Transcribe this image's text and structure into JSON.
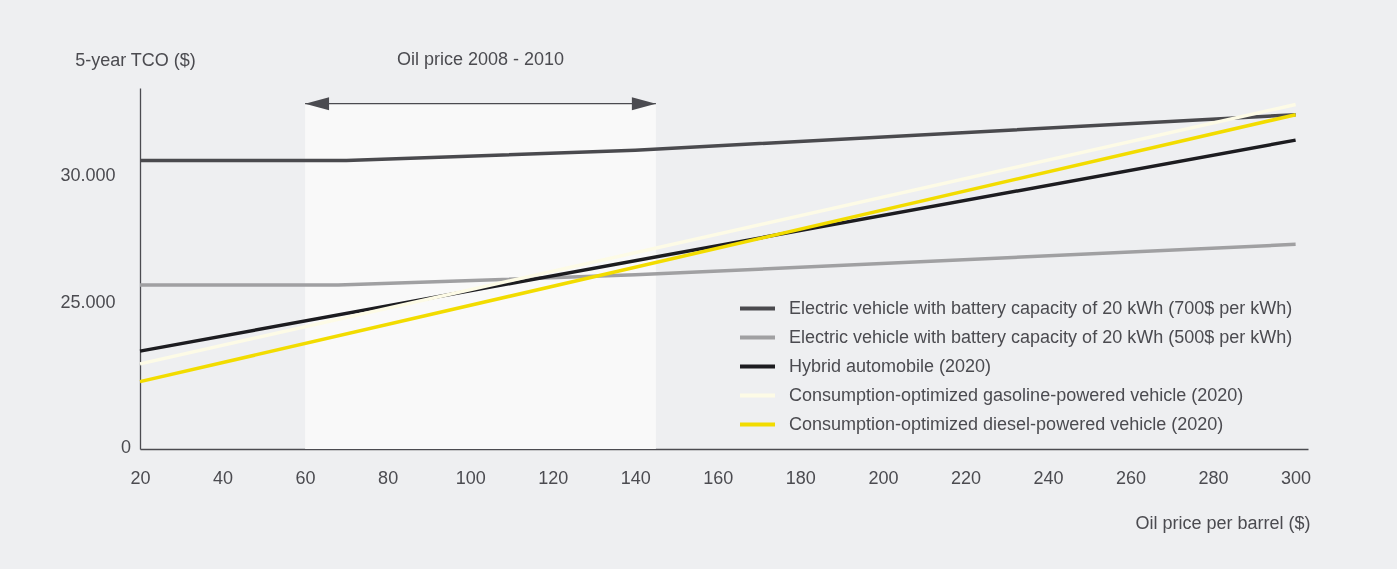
{
  "chart_data": {
    "type": "line",
    "xlabel": "Oil price per barrel ($)",
    "ylabel": "5-year TCO ($)",
    "xlim": [
      20,
      303
    ],
    "xticks": [
      20,
      40,
      60,
      80,
      100,
      120,
      140,
      160,
      180,
      200,
      220,
      240,
      260,
      280,
      300
    ],
    "ylim": [
      19250,
      33450
    ],
    "yticks": [
      {
        "value": 25000,
        "label": "25.000"
      },
      {
        "value": 30000,
        "label": "30.000"
      }
    ],
    "series": [
      {
        "name": "Electric vehicle with battery capacity of 20 kWh (700$ per kWh)",
        "color": "#4a4a4e",
        "x": [
          20,
          70,
          140,
          300
        ],
        "values": [
          30600,
          30600,
          31000,
          32400
        ]
      },
      {
        "name": "Electric vehicle with battery capacity of 20 kWh (500$ per kWh)",
        "color": "#a0a0a2",
        "x": [
          20,
          68,
          140,
          300
        ],
        "values": [
          25700,
          25700,
          26100,
          27300
        ]
      },
      {
        "name": "Hybrid automobile (2020)",
        "color": "#1c1c20",
        "x": [
          20,
          300
        ],
        "values": [
          23100,
          31400
        ]
      },
      {
        "name": "Consumption-optimized gasoline-powered vehicle (2020)",
        "color": "#fdfbe6",
        "x": [
          20,
          300
        ],
        "values": [
          22600,
          32800
        ]
      },
      {
        "name": "Consumption-optimized diesel-powered vehicle (2020)",
        "color": "#f2dc00",
        "x": [
          20,
          300
        ],
        "values": [
          21900,
          32400
        ]
      }
    ],
    "bands": [
      {
        "axis": "x",
        "from": 60,
        "to": 145,
        "label": "Oil price 2008 - 2010",
        "color": "#f9f9f9"
      }
    ],
    "annotations": [
      "0"
    ],
    "legend": "bottom right",
    "line_style": "solid"
  }
}
